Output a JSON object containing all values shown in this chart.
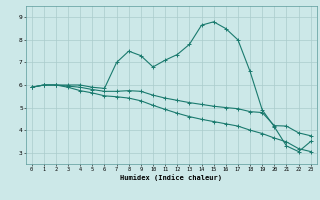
{
  "title": "",
  "xlabel": "Humidex (Indice chaleur)",
  "ylabel": "",
  "background_color": "#cce8e8",
  "grid_color": "#aacccc",
  "line_color": "#1a7a6e",
  "xlim": [
    -0.5,
    23.5
  ],
  "ylim": [
    2.5,
    9.5
  ],
  "xticks": [
    0,
    1,
    2,
    3,
    4,
    5,
    6,
    7,
    8,
    9,
    10,
    11,
    12,
    13,
    14,
    15,
    16,
    17,
    18,
    19,
    20,
    21,
    22,
    23
  ],
  "yticks": [
    3,
    4,
    5,
    6,
    7,
    8,
    9
  ],
  "x": [
    0,
    1,
    2,
    3,
    4,
    5,
    6,
    7,
    8,
    9,
    10,
    11,
    12,
    13,
    14,
    15,
    16,
    17,
    18,
    19,
    20,
    21,
    22,
    23
  ],
  "line1": [
    5.9,
    6.0,
    6.0,
    6.0,
    6.0,
    5.9,
    5.85,
    7.0,
    7.5,
    7.3,
    6.8,
    7.1,
    7.35,
    7.8,
    8.65,
    8.8,
    8.5,
    8.0,
    6.6,
    4.9,
    4.15,
    3.3,
    3.05,
    3.5
  ],
  "line2": [
    5.9,
    6.0,
    6.0,
    5.95,
    5.9,
    5.8,
    5.72,
    5.72,
    5.75,
    5.72,
    5.55,
    5.42,
    5.32,
    5.22,
    5.14,
    5.06,
    5.0,
    4.95,
    4.82,
    4.78,
    4.2,
    4.18,
    3.88,
    3.75
  ],
  "line3": [
    5.9,
    6.0,
    6.0,
    5.9,
    5.75,
    5.65,
    5.52,
    5.48,
    5.42,
    5.3,
    5.1,
    4.92,
    4.75,
    4.6,
    4.48,
    4.38,
    4.28,
    4.18,
    4.0,
    3.85,
    3.65,
    3.48,
    3.18,
    3.05
  ]
}
